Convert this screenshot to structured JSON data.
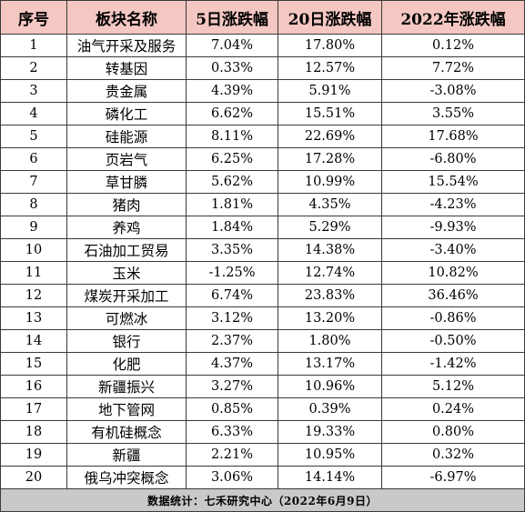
{
  "table": {
    "headers": [
      "序号",
      "板块名称",
      "5日涨跌幅",
      "20日涨跌幅",
      "2022年涨跌幅"
    ],
    "rows": [
      [
        "1",
        "油气开采及服务",
        "7.04%",
        "17.80%",
        "0.12%"
      ],
      [
        "2",
        "转基因",
        "0.33%",
        "12.57%",
        "7.72%"
      ],
      [
        "3",
        "贵金属",
        "4.39%",
        "5.91%",
        "-3.08%"
      ],
      [
        "4",
        "磷化工",
        "6.62%",
        "15.51%",
        "3.55%"
      ],
      [
        "5",
        "硅能源",
        "8.11%",
        "22.69%",
        "17.68%"
      ],
      [
        "6",
        "页岩气",
        "6.25%",
        "17.28%",
        "-6.80%"
      ],
      [
        "7",
        "草甘膦",
        "5.62%",
        "10.99%",
        "15.54%"
      ],
      [
        "8",
        "猪肉",
        "1.81%",
        "4.35%",
        "-4.23%"
      ],
      [
        "9",
        "养鸡",
        "1.84%",
        "5.29%",
        "-9.93%"
      ],
      [
        "10",
        "石油加工贸易",
        "3.35%",
        "14.38%",
        "-3.40%"
      ],
      [
        "11",
        "玉米",
        "-1.25%",
        "12.74%",
        "10.82%"
      ],
      [
        "12",
        "煤炭开采加工",
        "6.74%",
        "23.83%",
        "36.46%"
      ],
      [
        "13",
        "可燃冰",
        "3.12%",
        "13.20%",
        "-0.86%"
      ],
      [
        "14",
        "银行",
        "2.37%",
        "1.80%",
        "-0.50%"
      ],
      [
        "15",
        "化肥",
        "4.37%",
        "13.17%",
        "-1.42%"
      ],
      [
        "16",
        "新疆振兴",
        "3.27%",
        "10.96%",
        "5.12%"
      ],
      [
        "17",
        "地下管网",
        "0.85%",
        "0.39%",
        "0.24%"
      ],
      [
        "18",
        "有机硅概念",
        "6.33%",
        "19.33%",
        "0.80%"
      ],
      [
        "19",
        "新疆",
        "2.21%",
        "10.95%",
        "0.32%"
      ],
      [
        "20",
        "俄乌冲突概念",
        "3.06%",
        "14.14%",
        "-6.97%"
      ]
    ],
    "footer": "数据统计：七禾研究中心（2022年6月9日）"
  },
  "colors": {
    "header_bg": "#f4c7c2",
    "footer_bg": "#c9c9c9",
    "border": "#3a3a3a"
  }
}
